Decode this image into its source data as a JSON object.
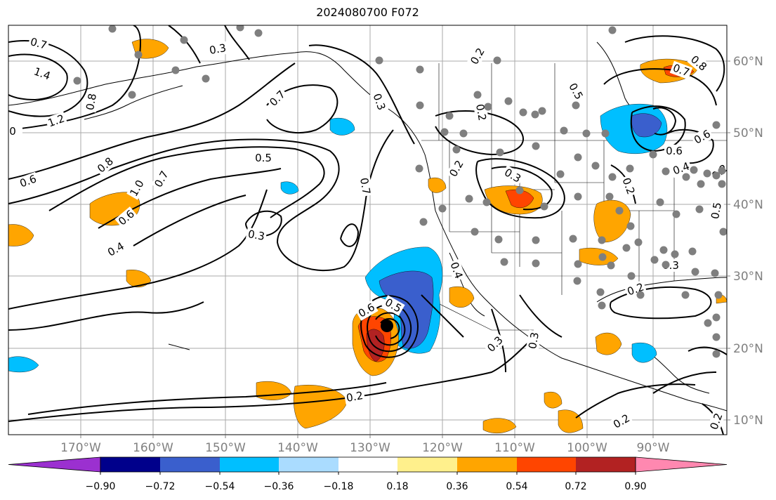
{
  "title": "2024080700 F072",
  "longitude_labels": [
    "170°W",
    "160°W",
    "150°W",
    "140°W",
    "130°W",
    "120°W",
    "110°W",
    "100°W",
    "90°W"
  ],
  "latitude_labels": [
    "60°N",
    "50°N",
    "40°N",
    "30°N",
    "20°N",
    "10°N"
  ],
  "colorbar": {
    "ticks": [
      "−0.90",
      "−0.72",
      "−0.54",
      "−0.36",
      "−0.18",
      "0.18",
      "0.36",
      "0.54",
      "0.72",
      "0.90"
    ],
    "colors": [
      "#9b30d0",
      "#00008b",
      "#3a5fcd",
      "#00bfff",
      "#aadcff",
      "#ffffff",
      "#fff08c",
      "#ffa500",
      "#ff4500",
      "#b22222",
      "#ff88b0"
    ]
  },
  "contour_labels": [
    {
      "text": "0.7"
    },
    {
      "text": "1.4"
    },
    {
      "text": "1.2"
    },
    {
      "text": "0"
    },
    {
      "text": "0.8"
    },
    {
      "text": "0.3"
    },
    {
      "text": "0.7"
    },
    {
      "text": "0.5"
    },
    {
      "text": "0.6"
    },
    {
      "text": "0.8"
    },
    {
      "text": "1.0"
    },
    {
      "text": "0.7"
    },
    {
      "text": "0.6"
    },
    {
      "text": "0.4"
    },
    {
      "text": "0.3"
    },
    {
      "text": "0.7"
    },
    {
      "text": "0.3"
    },
    {
      "text": "0.2"
    },
    {
      "text": "0.2"
    },
    {
      "text": "0.3"
    },
    {
      "text": "0.2"
    },
    {
      "text": "0.4"
    },
    {
      "text": "0.5"
    },
    {
      "text": "0.6"
    },
    {
      "text": "0.2"
    },
    {
      "text": "0.3"
    },
    {
      "text": "0.3"
    },
    {
      "text": "0.2"
    },
    {
      "text": "0.3"
    },
    {
      "text": "0.2"
    },
    {
      "text": "0.2"
    },
    {
      "text": "0.5"
    },
    {
      "text": "0.7"
    },
    {
      "text": "0.8"
    },
    {
      "text": "0.6"
    },
    {
      "text": "0.6"
    },
    {
      "text": "0.4"
    },
    {
      "text": "0.2"
    },
    {
      "text": "0.5"
    },
    {
      "text": "0.2"
    }
  ]
}
